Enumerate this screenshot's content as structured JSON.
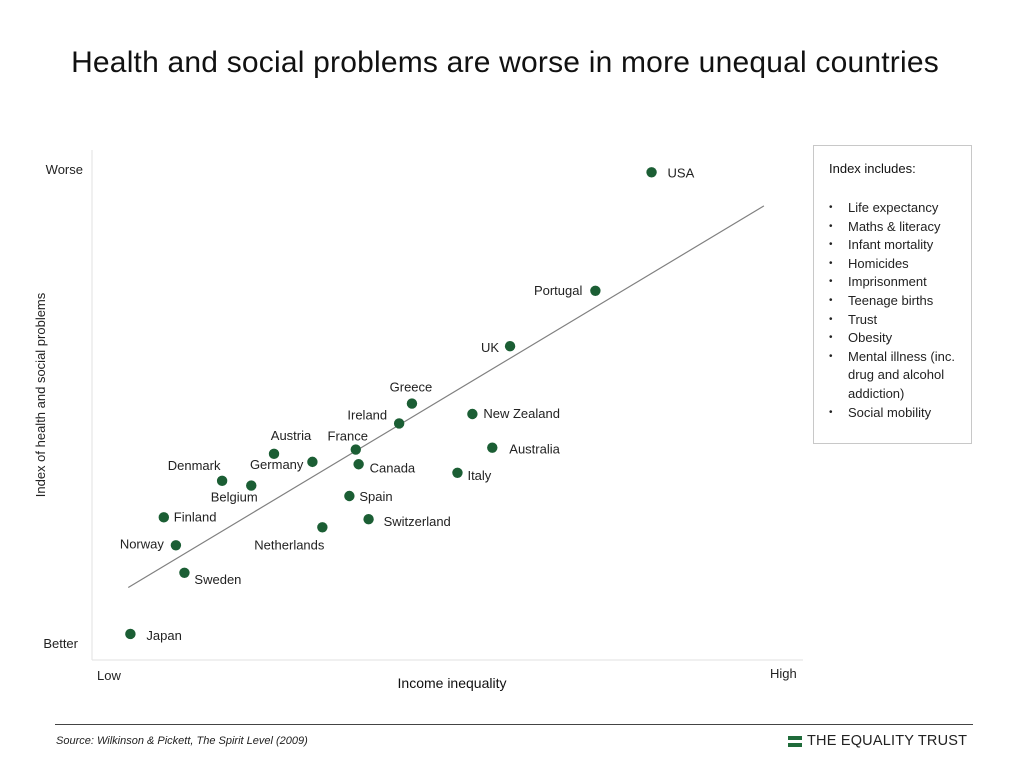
{
  "title": "Health and social problems are worse in more unequal countries",
  "chart_data": {
    "type": "scatter",
    "xlabel": "Income inequality",
    "ylabel": "Index of health and social problems",
    "x_tick_labels": {
      "low": "Low",
      "high": "High"
    },
    "y_tick_labels": {
      "low": "Better",
      "high": "Worse"
    },
    "xlim": [
      0,
      100
    ],
    "ylim": [
      0,
      100
    ],
    "points": [
      {
        "label": "USA",
        "x": 78.7,
        "y": 99.1
      },
      {
        "label": "Portugal",
        "x": 70.8,
        "y": 74.1
      },
      {
        "label": "UK",
        "x": 58.8,
        "y": 62.4
      },
      {
        "label": "Greece",
        "x": 45.0,
        "y": 50.3
      },
      {
        "label": "Ireland",
        "x": 43.2,
        "y": 46.1
      },
      {
        "label": "New Zealand",
        "x": 53.5,
        "y": 48.1
      },
      {
        "label": "Australia",
        "x": 56.3,
        "y": 41.0
      },
      {
        "label": "Italy",
        "x": 51.4,
        "y": 35.7
      },
      {
        "label": "France",
        "x": 37.1,
        "y": 40.6
      },
      {
        "label": "Canada",
        "x": 37.5,
        "y": 37.5
      },
      {
        "label": "Austria",
        "x": 25.6,
        "y": 39.7
      },
      {
        "label": "Germany",
        "x": 31.0,
        "y": 38.0
      },
      {
        "label": "Denmark",
        "x": 18.3,
        "y": 34.0
      },
      {
        "label": "Belgium",
        "x": 22.4,
        "y": 33.0
      },
      {
        "label": "Spain",
        "x": 36.2,
        "y": 30.8
      },
      {
        "label": "Switzerland",
        "x": 38.9,
        "y": 25.9
      },
      {
        "label": "Netherlands",
        "x": 32.4,
        "y": 24.2
      },
      {
        "label": "Finland",
        "x": 10.1,
        "y": 26.3
      },
      {
        "label": "Norway",
        "x": 11.8,
        "y": 20.4
      },
      {
        "label": "Sweden",
        "x": 13.0,
        "y": 14.6
      },
      {
        "label": "Japan",
        "x": 5.4,
        "y": 1.7
      }
    ],
    "trend_line": {
      "x": [
        5.1,
        94.5
      ],
      "y": [
        11.5,
        92.0
      ]
    },
    "point_color": "#1b5e34",
    "trend_color": "#808080",
    "grid": false,
    "legend": "none"
  },
  "index_box": {
    "title": "Index includes:",
    "items": [
      "Life expectancy",
      "Maths & literacy",
      "Infant mortality",
      "Homicides",
      "Imprisonment",
      "Teenage births",
      "Trust",
      "Obesity",
      "Mental illness (inc. drug and alcohol addiction)",
      "Social mobility"
    ]
  },
  "footer": {
    "source": "Source: Wilkinson & Pickett, The Spirit Level (2009)",
    "brand": "THE EQUALITY TRUST",
    "brand_color": "#1f6b3a"
  }
}
